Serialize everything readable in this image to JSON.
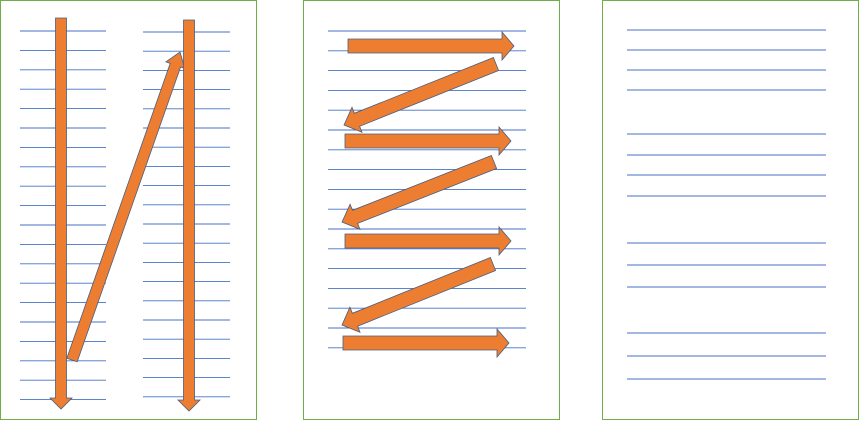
{
  "colors": {
    "page_border": "#70ad47",
    "rule_line": "#4472c4",
    "arrow_fill": "#ed7d31",
    "arrow_stroke": "#4a5f7e",
    "page_fill": "#ffffff"
  },
  "panels": [
    {
      "name": "two-column-reading-order",
      "columns": 2,
      "arrows": [
        "down-left-column",
        "diagonal-up-to-right-column",
        "down-right-column"
      ]
    },
    {
      "name": "zigzag-reading-order",
      "columns": 1,
      "arrows": [
        "right",
        "back-left",
        "right",
        "back-left",
        "right",
        "back-left",
        "right"
      ]
    },
    {
      "name": "paragraph-blocks",
      "columns": 1,
      "paragraphs": [
        4,
        4,
        3,
        3
      ],
      "arrows": []
    }
  ]
}
